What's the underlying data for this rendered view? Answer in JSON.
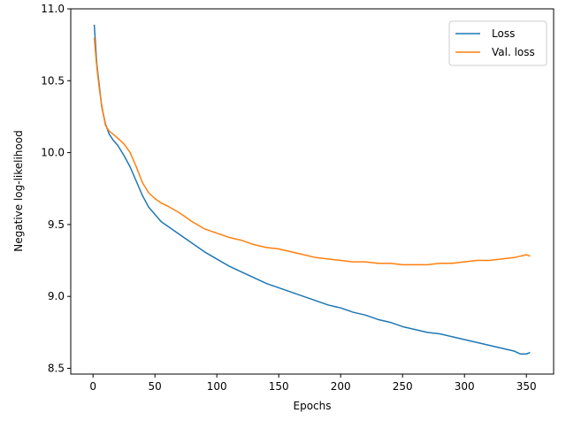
{
  "chart_data": {
    "type": "line",
    "title": "",
    "xlabel": "Epochs",
    "ylabel": "Negative log-likelihood",
    "xlim": [
      -18,
      372
    ],
    "ylim": [
      8.46,
      11.0
    ],
    "xticks": [
      0,
      50,
      100,
      150,
      200,
      250,
      300,
      350
    ],
    "xtick_labels": [
      "0",
      "50",
      "100",
      "150",
      "200",
      "250",
      "300",
      "350"
    ],
    "yticks": [
      8.5,
      9.0,
      9.5,
      10.0,
      10.5,
      11.0
    ],
    "ytick_labels": [
      "8.5",
      "9.0",
      "9.5",
      "10.0",
      "10.5",
      "11.0"
    ],
    "grid": false,
    "legend_position": "top-right",
    "series": [
      {
        "name": "Loss",
        "color": "#1f77b4",
        "x": [
          1,
          3,
          5,
          7,
          10,
          13,
          16,
          20,
          25,
          30,
          35,
          40,
          45,
          50,
          55,
          60,
          70,
          80,
          90,
          100,
          110,
          120,
          130,
          140,
          150,
          160,
          170,
          180,
          190,
          200,
          210,
          220,
          230,
          240,
          250,
          260,
          270,
          280,
          290,
          300,
          310,
          320,
          330,
          340,
          345,
          350,
          353
        ],
        "values": [
          10.89,
          10.62,
          10.47,
          10.32,
          10.2,
          10.13,
          10.09,
          10.05,
          9.98,
          9.9,
          9.8,
          9.7,
          9.62,
          9.57,
          9.52,
          9.49,
          9.43,
          9.37,
          9.31,
          9.26,
          9.21,
          9.17,
          9.13,
          9.09,
          9.06,
          9.03,
          9.0,
          8.97,
          8.94,
          8.92,
          8.89,
          8.87,
          8.84,
          8.82,
          8.79,
          8.77,
          8.75,
          8.74,
          8.72,
          8.7,
          8.68,
          8.66,
          8.64,
          8.62,
          8.6,
          8.6,
          8.61
        ]
      },
      {
        "name": "Val. loss",
        "color": "#ff7f0e",
        "x": [
          1,
          3,
          5,
          7,
          10,
          13,
          16,
          20,
          25,
          30,
          35,
          40,
          45,
          50,
          55,
          60,
          70,
          80,
          90,
          100,
          110,
          120,
          130,
          140,
          150,
          160,
          170,
          180,
          190,
          200,
          210,
          220,
          230,
          240,
          250,
          260,
          270,
          280,
          290,
          300,
          310,
          320,
          330,
          340,
          345,
          350,
          353
        ],
        "values": [
          10.8,
          10.6,
          10.45,
          10.33,
          10.19,
          10.15,
          10.13,
          10.1,
          10.06,
          10.0,
          9.9,
          9.79,
          9.72,
          9.68,
          9.65,
          9.63,
          9.58,
          9.52,
          9.47,
          9.44,
          9.41,
          9.39,
          9.36,
          9.34,
          9.33,
          9.31,
          9.29,
          9.27,
          9.26,
          9.25,
          9.24,
          9.24,
          9.23,
          9.23,
          9.22,
          9.22,
          9.22,
          9.23,
          9.23,
          9.24,
          9.25,
          9.25,
          9.26,
          9.27,
          9.28,
          9.29,
          9.28
        ]
      }
    ]
  }
}
